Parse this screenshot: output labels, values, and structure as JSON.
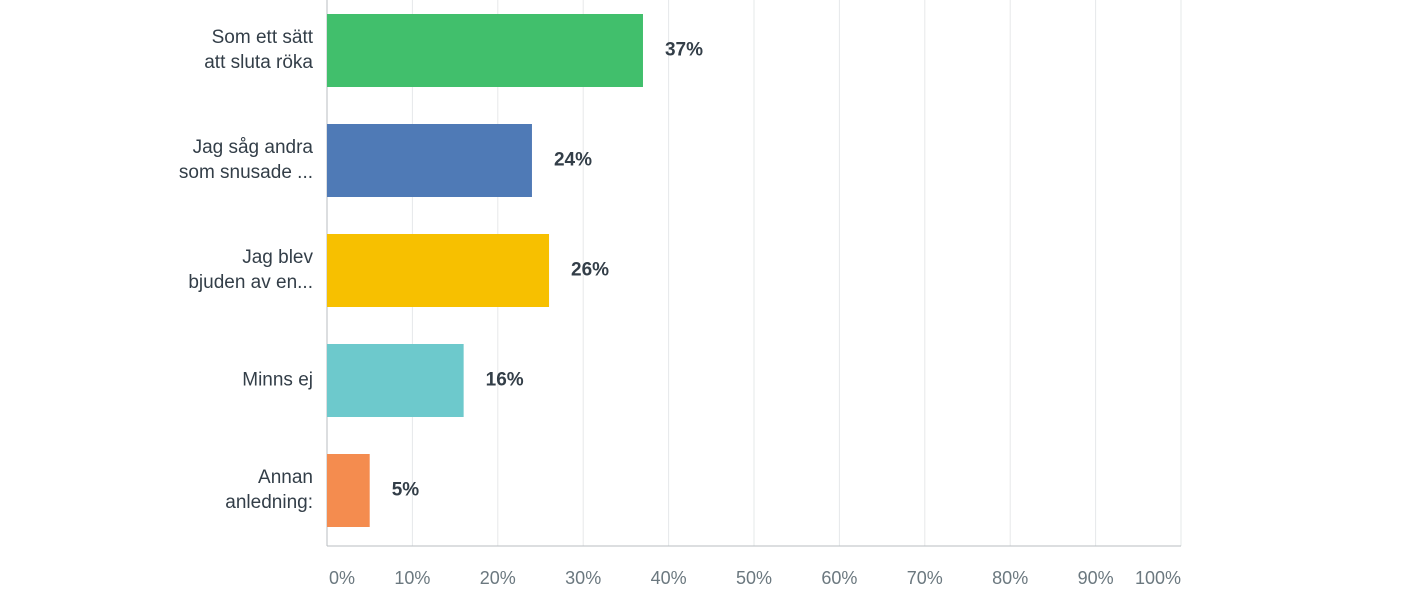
{
  "chart_data": {
    "type": "bar",
    "orientation": "horizontal",
    "categories": [
      "Som ett sätt\natt sluta röka",
      "Jag såg andra\nsom snusade ...",
      "Jag blev\nbjuden av en...",
      "Minns ej",
      "Annan\nanledning:"
    ],
    "values": [
      37,
      24,
      26,
      16,
      5
    ],
    "value_labels": [
      "37%",
      "24%",
      "26%",
      "16%",
      "5%"
    ],
    "colors": [
      "#41bf6c",
      "#4f7ab6",
      "#f7c000",
      "#6dc9cc",
      "#f48c4f"
    ],
    "xlim": [
      0,
      100
    ],
    "xticks": [
      {
        "value": 0,
        "label": "0%"
      },
      {
        "value": 10,
        "label": "10%"
      },
      {
        "value": 20,
        "label": "20%"
      },
      {
        "value": 30,
        "label": "30%"
      },
      {
        "value": 40,
        "label": "40%"
      },
      {
        "value": 50,
        "label": "50%"
      },
      {
        "value": 60,
        "label": "60%"
      },
      {
        "value": 70,
        "label": "70%"
      },
      {
        "value": 80,
        "label": "80%"
      },
      {
        "value": 90,
        "label": "90%"
      },
      {
        "value": 100,
        "label": "100%"
      }
    ],
    "grid": true
  }
}
